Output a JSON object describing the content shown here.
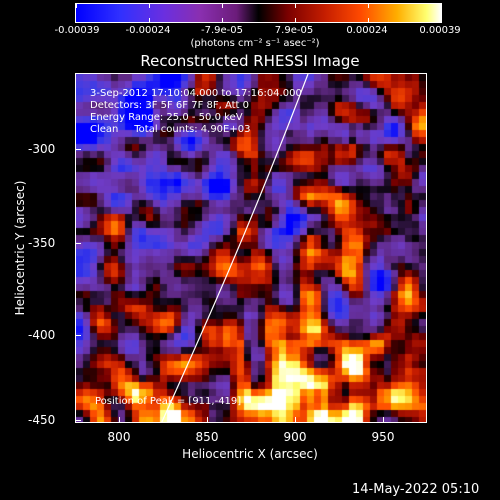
{
  "colorbar": {
    "tick_labels": [
      "-0.00039",
      "-0.00024",
      "-7.9e-05",
      "7.9e-05",
      "0.00024",
      "0.00039"
    ],
    "units": "(photons cm⁻² s⁻¹ asec⁻²)"
  },
  "title": "Reconstructed RHESSI Image",
  "info": {
    "time_range": "3-Sep-2012 17:10:04.000 to 17:16:04.000",
    "detectors": "Detectors: 3F 5F 6F 7F 8F, Att 0",
    "energy": "Energy Range: 25.0 - 50.0 keV",
    "clean": "Clean     Total counts: 4.90E+03",
    "peak": "Position of Peak = [911,-419]"
  },
  "axes": {
    "x_label": "Heliocentric X (arcsec)",
    "y_label": "Heliocentric Y (arcsec)",
    "x_ticks": [
      "800",
      "850",
      "900",
      "950"
    ],
    "y_ticks": [
      "-300",
      "-350",
      "-400",
      "-450"
    ]
  },
  "timestamp": "14-May-2022 05:10",
  "colors": {
    "background": "#000000",
    "text": "#ffffff",
    "limb_line": "#ffffff"
  }
}
